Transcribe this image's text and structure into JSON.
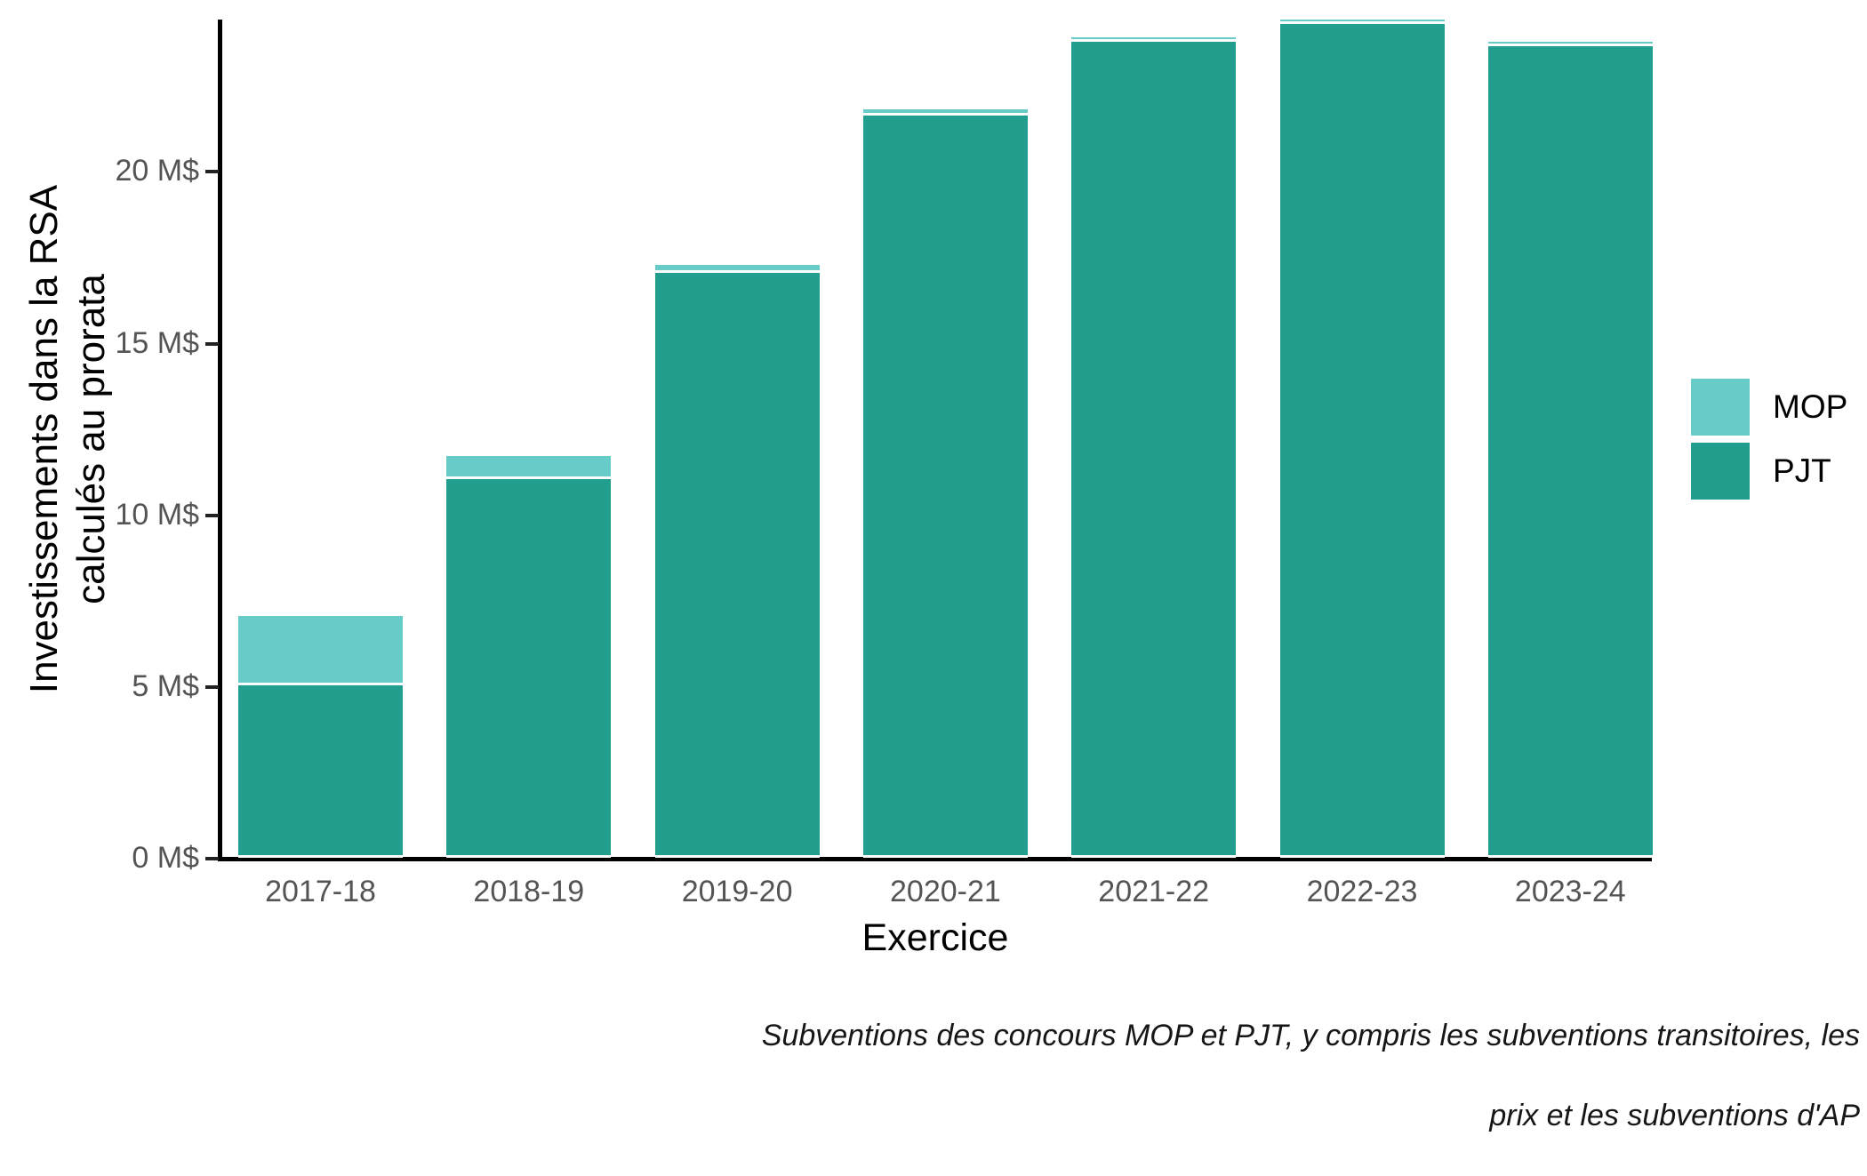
{
  "chart_data": {
    "type": "bar",
    "stacked": true,
    "title": "",
    "xlabel": "Exercice",
    "ylabel_lines": [
      "Investissements dans la RSA",
      "calculés au prorata"
    ],
    "categories": [
      "2017-18",
      "2018-19",
      "2019-20",
      "2020-21",
      "2021-22",
      "2022-23",
      "2023-24"
    ],
    "series": [
      {
        "name": "PJT",
        "color": "#219E8D",
        "values": [
          5.1,
          11.1,
          17.1,
          21.7,
          23.85,
          24.35,
          23.7
        ]
      },
      {
        "name": "MOP",
        "color": "#67CCC8",
        "values": [
          1.95,
          0.6,
          0.15,
          0.1,
          0.05,
          0.05,
          0.05
        ]
      }
    ],
    "totals": [
      7.05,
      11.7,
      17.25,
      21.8,
      23.9,
      24.4,
      23.75
    ],
    "unit": "M$",
    "ytick_values": [
      0,
      5,
      10,
      15,
      20
    ],
    "ytick_labels": [
      "0 M$",
      "5 M$",
      "10 M$",
      "15 M$",
      "20 M$"
    ],
    "ylim": [
      0,
      24.45
    ],
    "grid": false,
    "legend_position": "right",
    "legend_items": [
      "MOP",
      "PJT"
    ],
    "caption_lines": [
      "Subventions des concours MOP et PJT, y compris les subventions transitoires, les",
      "prix et les subventions d'AP"
    ],
    "colors": {
      "mop": "#67CCC8",
      "pjt": "#219E8D",
      "axis": "#000000",
      "tick_text": "#545454"
    }
  }
}
